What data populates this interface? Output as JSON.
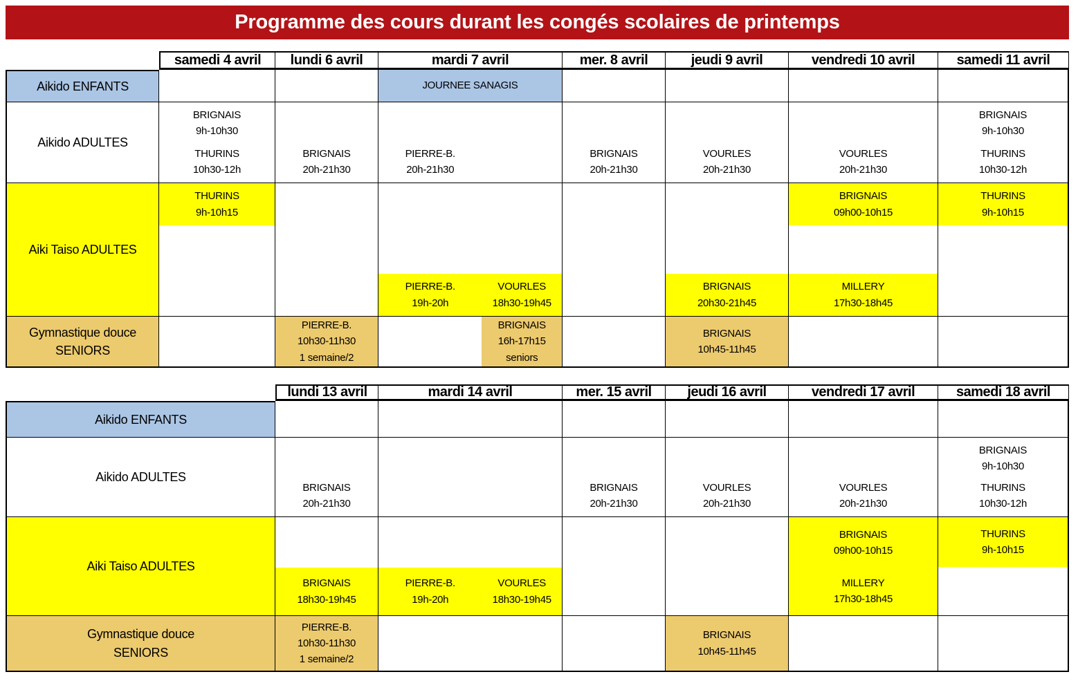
{
  "title": "Programme des cours durant les congés scolaires de printemps",
  "colors": {
    "banner_red": "#b31317",
    "enfants_blue": "#abc5e5",
    "taiso_yellow": "#ffff00",
    "seniors_tan": "#ecca6e"
  },
  "labels": {
    "enfants": "Aikido ENFANTS",
    "adultes": "Aikido ADULTES",
    "taiso": "Aiki Taiso ADULTES",
    "seniors_line1": "Gymnastique douce",
    "seniors_line2": "SENIORS"
  },
  "t1": {
    "headers": [
      "samedi 4 avril",
      "lundi 6 avril",
      "mardi 7 avril",
      "mer. 8 avril",
      "jeudi 9 avril",
      "vendredi 10 avril",
      "samedi 11 avril"
    ],
    "enfants": {
      "mar7": "JOURNEE SANAGIS"
    },
    "adultes": {
      "sam4_a": {
        "v": "BRIGNAIS",
        "t": "9h-10h30"
      },
      "sam4_b": {
        "v": "THURINS",
        "t": "10h30-12h"
      },
      "lun6": {
        "v": "BRIGNAIS",
        "t": "20h-21h30"
      },
      "mar7": {
        "v": "PIERRE-B.",
        "t": "20h-21h30"
      },
      "mer8": {
        "v": "BRIGNAIS",
        "t": "20h-21h30"
      },
      "jeu9": {
        "v": "VOURLES",
        "t": "20h-21h30"
      },
      "ven10": {
        "v": "VOURLES",
        "t": "20h-21h30"
      },
      "sam11_a": {
        "v": "BRIGNAIS",
        "t": "9h-10h30"
      },
      "sam11_b": {
        "v": "THURINS",
        "t": "10h30-12h"
      }
    },
    "taiso": {
      "sam4_top": {
        "v": "THURINS",
        "t": "9h-10h15"
      },
      "mar7_left": {
        "v": "PIERRE-B.",
        "t": "19h-20h"
      },
      "mar7_right": {
        "v": "VOURLES",
        "t": "18h30-19h45"
      },
      "jeu9_bot": {
        "v": "BRIGNAIS",
        "t": "20h30-21h45"
      },
      "ven10_top": {
        "v": "BRIGNAIS",
        "t": "09h00-10h15"
      },
      "ven10_bot": {
        "v": "MILLERY",
        "t": "17h30-18h45"
      },
      "sam11_top": {
        "v": "THURINS",
        "t": "9h-10h15"
      }
    },
    "seniors": {
      "lun6": {
        "v": "PIERRE-B.",
        "t": "10h30-11h30",
        "n": "1 semaine/2"
      },
      "mar7_right": {
        "v": "BRIGNAIS",
        "t": "16h-17h15",
        "n": "seniors"
      },
      "jeu9": {
        "v": "BRIGNAIS",
        "t": "10h45-11h45"
      }
    }
  },
  "t2": {
    "headers": [
      "lundi 13 avril",
      "mardi 14 avril",
      "mer. 15 avril",
      "jeudi 16 avril",
      "vendredi 17 avril",
      "samedi 18 avril"
    ],
    "adultes": {
      "lun13": {
        "v": "BRIGNAIS",
        "t": "20h-21h30"
      },
      "mer15": {
        "v": "BRIGNAIS",
        "t": "20h-21h30"
      },
      "jeu16": {
        "v": "VOURLES",
        "t": "20h-21h30"
      },
      "ven17": {
        "v": "VOURLES",
        "t": "20h-21h30"
      },
      "sam18_a": {
        "v": "BRIGNAIS",
        "t": "9h-10h30"
      },
      "sam18_b": {
        "v": "THURINS",
        "t": "10h30-12h"
      }
    },
    "taiso": {
      "lun13_bot": {
        "v": "BRIGNAIS",
        "t": "18h30-19h45"
      },
      "mar14_left": {
        "v": "PIERRE-B.",
        "t": "19h-20h"
      },
      "mar14_right": {
        "v": "VOURLES",
        "t": "18h30-19h45"
      },
      "ven17_top": {
        "v": "BRIGNAIS",
        "t": "09h00-10h15"
      },
      "ven17_bot": {
        "v": "MILLERY",
        "t": "17h30-18h45"
      },
      "sam18_top": {
        "v": "THURINS",
        "t": "9h-10h15"
      }
    },
    "seniors": {
      "lun13": {
        "v": "PIERRE-B.",
        "t": "10h30-11h30",
        "n": "1 semaine/2"
      },
      "jeu16": {
        "v": "BRIGNAIS",
        "t": "10h45-11h45"
      }
    }
  }
}
